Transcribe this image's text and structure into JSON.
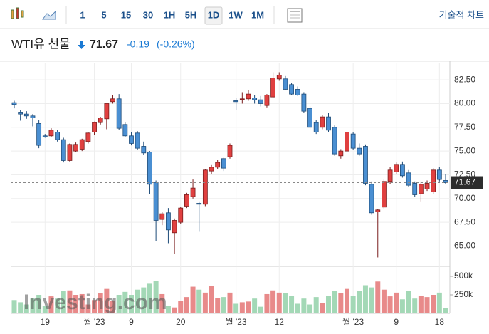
{
  "toolbar": {
    "intervals": [
      "1",
      "5",
      "15",
      "30",
      "1H",
      "5H",
      "1D",
      "1W",
      "1M"
    ],
    "active": "1D",
    "chart_link": "기술적 차트"
  },
  "header": {
    "title": "WTI유 선물",
    "price": "71.67",
    "change": "-0.19",
    "change_pct": "(-0.26%)"
  },
  "watermark": "Investing.com",
  "chart_data": {
    "type": "candlestick",
    "categories": [
      null,
      null,
      null,
      null,
      null,
      "19",
      null,
      null,
      null,
      null,
      null,
      null,
      null,
      "월 '23",
      null,
      null,
      null,
      null,
      null,
      "9",
      null,
      null,
      null,
      null,
      null,
      null,
      null,
      "20",
      null,
      null,
      null,
      null,
      null,
      null,
      null,
      null,
      "월 '23",
      null,
      null,
      null,
      null,
      null,
      null,
      "12",
      null,
      null,
      null,
      null,
      null,
      null,
      null,
      null,
      null,
      null,
      null,
      "월 '23",
      null,
      null,
      null,
      null,
      null,
      null,
      "9",
      null,
      null,
      null,
      null,
      null,
      null,
      "18",
      null
    ],
    "open": [
      80.1,
      79.1,
      78.9,
      78.7,
      77.9,
      76.6,
      76.6,
      77.0,
      76.2,
      74.0,
      75.0,
      75.2,
      76.0,
      77.0,
      78.0,
      78.4,
      80.2,
      80.5,
      77.8,
      76.6,
      76.9,
      75.5,
      74.9,
      71.7,
      67.8,
      68.5,
      66.4,
      67.5,
      69.2,
      70.2,
      69.5,
      69.4,
      72.9,
      73.3,
      74.2,
      74.4,
      80.3,
      80.5,
      80.5,
      80.6,
      80.4,
      79.8,
      80.7,
      82.6,
      82.6,
      82.0,
      81.5,
      81.0,
      79.5,
      78.0,
      77.5,
      78.6,
      77.5,
      74.5,
      75.0,
      76.8,
      75.3,
      75.5,
      71.5,
      68.6,
      69.1,
      71.8,
      72.8,
      73.6,
      72.7,
      71.6,
      70.5,
      71.0,
      70.7,
      73.0,
      71.9
    ],
    "high": [
      80.3,
      79.3,
      79.2,
      78.9,
      78.3,
      76.8,
      77.4,
      77.2,
      76.4,
      75.8,
      75.9,
      76.3,
      77.0,
      78.1,
      78.6,
      80.0,
      80.9,
      81.0,
      78.0,
      77.0,
      77.1,
      76.0,
      75.0,
      71.9,
      68.6,
      69.0,
      67.9,
      69.1,
      70.6,
      72.0,
      69.7,
      73.1,
      73.6,
      74.1,
      74.3,
      75.8,
      80.6,
      81.2,
      81.4,
      80.9,
      80.8,
      81.0,
      83.3,
      83.3,
      82.9,
      82.2,
      81.8,
      81.2,
      79.7,
      78.3,
      78.8,
      79.0,
      77.7,
      75.2,
      77.2,
      77.0,
      75.8,
      75.7,
      71.8,
      68.9,
      72.0,
      73.3,
      73.8,
      73.9,
      73.0,
      71.8,
      71.8,
      71.9,
      73.2,
      73.3,
      72.6
    ],
    "low": [
      79.5,
      78.2,
      78.4,
      77.6,
      75.3,
      76.4,
      76.5,
      76.0,
      73.8,
      73.9,
      74.9,
      75.0,
      75.8,
      76.7,
      77.8,
      77.3,
      80.0,
      77.2,
      76.5,
      75.6,
      75.1,
      74.6,
      70.5,
      65.5,
      67.2,
      65.3,
      64.2,
      67.3,
      69.0,
      70.0,
      66.5,
      69.2,
      72.6,
      73.1,
      72.9,
      74.2,
      79.3,
      80.0,
      80.3,
      80.0,
      79.7,
      79.6,
      80.6,
      82.4,
      81.4,
      80.9,
      80.8,
      79.0,
      77.3,
      76.8,
      77.3,
      77.0,
      74.5,
      74.2,
      74.9,
      75.1,
      74.5,
      71.4,
      68.3,
      63.8,
      68.9,
      71.5,
      72.6,
      72.2,
      71.2,
      70.2,
      69.7,
      70.8,
      70.5,
      71.8,
      71.5
    ],
    "close": [
      79.9,
      78.9,
      78.7,
      78.5,
      75.6,
      76.5,
      77.2,
      76.2,
      74.0,
      75.7,
      75.7,
      76.2,
      76.9,
      78.0,
      78.5,
      80.0,
      80.5,
      77.4,
      76.6,
      75.8,
      75.3,
      74.8,
      71.5,
      67.7,
      68.4,
      66.7,
      67.7,
      69.0,
      70.4,
      71.1,
      69.4,
      73.0,
      73.3,
      73.8,
      73.2,
      75.6,
      80.2,
      80.5,
      81.0,
      80.4,
      80.0,
      80.9,
      82.7,
      83.0,
      81.5,
      81.0,
      80.9,
      79.2,
      77.5,
      77.0,
      78.6,
      77.2,
      74.7,
      75.0,
      77.0,
      75.3,
      74.7,
      71.6,
      68.5,
      68.8,
      71.8,
      73.0,
      73.6,
      72.4,
      71.4,
      70.4,
      71.5,
      71.6,
      73.0,
      72.0,
      71.67
    ],
    "volume": [
      180000,
      150000,
      120000,
      200000,
      250000,
      100000,
      230000,
      200000,
      300000,
      310000,
      250000,
      260000,
      120000,
      180000,
      270000,
      330000,
      170000,
      250000,
      290000,
      250000,
      320000,
      350000,
      400000,
      440000,
      260000,
      100000,
      80000,
      170000,
      220000,
      360000,
      320000,
      280000,
      370000,
      210000,
      220000,
      280000,
      130000,
      150000,
      160000,
      200000,
      90000,
      260000,
      310000,
      280000,
      270000,
      240000,
      130000,
      200000,
      120000,
      220000,
      140000,
      240000,
      300000,
      270000,
      330000,
      240000,
      300000,
      380000,
      350000,
      430000,
      320000,
      230000,
      280000,
      190000,
      300000,
      200000,
      240000,
      220000,
      250000,
      280000,
      70000
    ],
    "up_color": "#e04040",
    "down_color": "#4a8fd2",
    "volume_up_color": "#e88a8a",
    "volume_down_color": "#a3d8b6",
    "ylim": [
      63.16,
      84.31
    ],
    "yticks": [
      {
        "value": 65,
        "label": "65.00"
      },
      {
        "value": 67.5,
        "label": "67.50"
      },
      {
        "value": 70,
        "label": "70.00"
      },
      {
        "value": 72.5,
        "label": "72.50"
      },
      {
        "value": 75,
        "label": "75.00"
      },
      {
        "value": 77.5,
        "label": "77.50"
      },
      {
        "value": 80,
        "label": "80.00"
      },
      {
        "value": 82.5,
        "label": "82.50"
      }
    ],
    "volume_lim": [
      0,
      625000
    ],
    "volume_ticks": [
      {
        "value": 250000,
        "label": "250k"
      },
      {
        "value": 500000,
        "label": "500k"
      }
    ],
    "grid": true
  }
}
